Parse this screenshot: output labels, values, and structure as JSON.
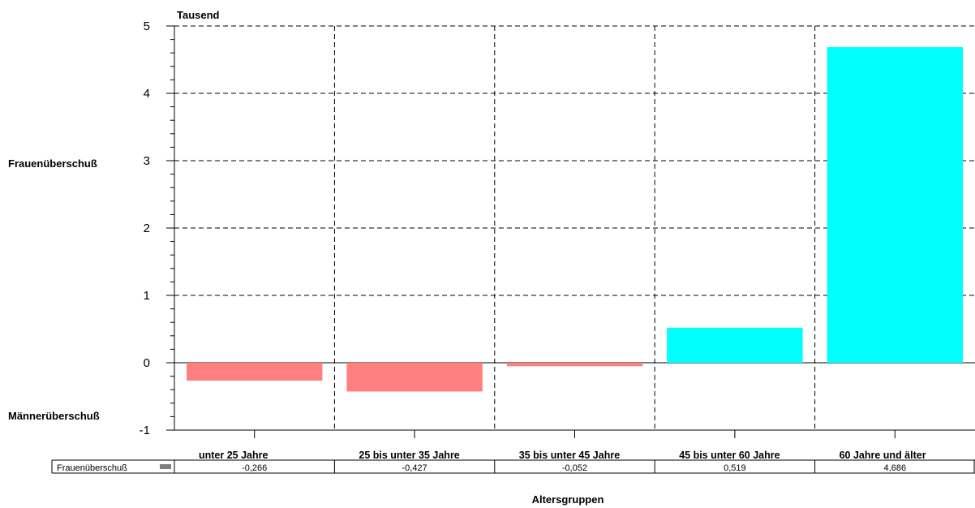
{
  "chart_data": {
    "type": "bar",
    "title": "",
    "unit_label": "Tausend",
    "ylabel_top": "Frauenüberschuß",
    "ylabel_bottom": "Männerüberschuß",
    "xlabel": "Altersgruppen",
    "ylim": [
      -1,
      5
    ],
    "yticks": [
      5,
      4,
      3,
      2,
      1,
      0,
      -1
    ],
    "grid": "dashed",
    "categories": [
      "unter 25 Jahre",
      "25 bis unter 35 Jahre",
      "35 bis unter 45 Jahre",
      "45 bis unter 60 Jahre",
      "60 Jahre und älter"
    ],
    "series": [
      {
        "name": "Frauenüberschuß",
        "values": [
          -0.266,
          -0.427,
          -0.052,
          0.519,
          4.686
        ],
        "value_labels": [
          "-0,266",
          "-0,427",
          "-0,052",
          "0,519",
          "4,686"
        ]
      }
    ],
    "colors": {
      "positive": "#00ffff",
      "negative": "#ff8080",
      "legend_swatch": "#808080"
    }
  }
}
